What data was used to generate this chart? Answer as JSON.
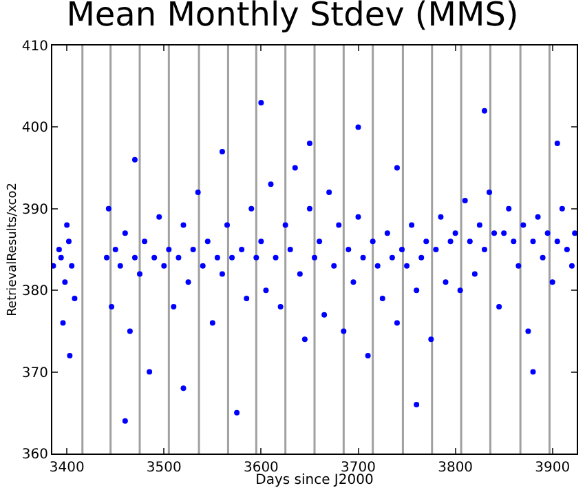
{
  "chart_data": {
    "type": "scatter",
    "title": "Mean Monthly Stdev (MMS)",
    "xlabel": "Days since J2000",
    "ylabel": "RetrievalResults/xco2",
    "xlim": [
      3385,
      3925
    ],
    "xticks": [
      3400,
      3500,
      3600,
      3700,
      3800,
      3900
    ],
    "ylim": [
      360,
      410
    ],
    "yticks": [
      360,
      370,
      380,
      390,
      400,
      410
    ],
    "marker": "circle",
    "series": [
      {
        "color": "#0000ff",
        "x": [
          3386,
          3392,
          3398,
          3402,
          3405,
          3408,
          3400,
          3396,
          3403,
          3394,
          3441,
          3443,
          3446,
          3450,
          3455,
          3460,
          3465,
          3470,
          3475,
          3480,
          3485,
          3490,
          3495,
          3500,
          3505,
          3510,
          3515,
          3520,
          3525,
          3530,
          3535,
          3540,
          3545,
          3550,
          3555,
          3560,
          3565,
          3570,
          3575,
          3580,
          3585,
          3590,
          3595,
          3600,
          3605,
          3610,
          3615,
          3620,
          3625,
          3630,
          3635,
          3640,
          3645,
          3650,
          3655,
          3660,
          3665,
          3670,
          3675,
          3680,
          3685,
          3690,
          3695,
          3700,
          3705,
          3710,
          3715,
          3720,
          3725,
          3730,
          3735,
          3740,
          3745,
          3750,
          3755,
          3760,
          3765,
          3770,
          3775,
          3780,
          3785,
          3790,
          3795,
          3800,
          3805,
          3810,
          3815,
          3820,
          3825,
          3830,
          3835,
          3840,
          3845,
          3850,
          3855,
          3860,
          3865,
          3870,
          3875,
          3880,
          3885,
          3890,
          3895,
          3900,
          3905,
          3910,
          3915,
          3920,
          3923,
          3460,
          3520,
          3600,
          3650,
          3700,
          3760,
          3830,
          3880,
          3470,
          3560,
          3740,
          3905
        ],
        "values": [
          383,
          385,
          381,
          386,
          383,
          379,
          388,
          376,
          372,
          384,
          384,
          390,
          378,
          385,
          383,
          387,
          375,
          384,
          382,
          386,
          370,
          384,
          389,
          383,
          385,
          378,
          384,
          388,
          381,
          385,
          392,
          383,
          386,
          376,
          384,
          382,
          388,
          384,
          365,
          385,
          379,
          390,
          384,
          386,
          380,
          393,
          384,
          378,
          388,
          385,
          395,
          382,
          374,
          390,
          384,
          386,
          377,
          392,
          383,
          388,
          375,
          385,
          381,
          389,
          384,
          372,
          386,
          383,
          379,
          387,
          384,
          376,
          385,
          383,
          388,
          380,
          384,
          386,
          374,
          385,
          389,
          381,
          386,
          387,
          380,
          391,
          386,
          382,
          388,
          385,
          392,
          387,
          378,
          387,
          390,
          386,
          383,
          388,
          375,
          386,
          389,
          384,
          387,
          381,
          386,
          390,
          385,
          383,
          387,
          364,
          368,
          403,
          398,
          400,
          366,
          402,
          370,
          396,
          397,
          395,
          398
        ]
      }
    ],
    "ref_lines": [
      {
        "axis": "x",
        "value": 3416,
        "color": "#a0a0a0"
      },
      {
        "axis": "x",
        "value": 3445,
        "color": "#a0a0a0"
      },
      {
        "axis": "x",
        "value": 3475,
        "color": "#a0a0a0"
      },
      {
        "axis": "x",
        "value": 3505,
        "color": "#a0a0a0"
      },
      {
        "axis": "x",
        "value": 3536,
        "color": "#a0a0a0"
      },
      {
        "axis": "x",
        "value": 3566,
        "color": "#a0a0a0"
      },
      {
        "axis": "x",
        "value": 3595,
        "color": "#a0a0a0"
      },
      {
        "axis": "x",
        "value": 3625,
        "color": "#a0a0a0"
      },
      {
        "axis": "x",
        "value": 3655,
        "color": "#a0a0a0"
      },
      {
        "axis": "x",
        "value": 3685,
        "color": "#a0a0a0"
      },
      {
        "axis": "x",
        "value": 3715,
        "color": "#a0a0a0"
      },
      {
        "axis": "x",
        "value": 3746,
        "color": "#a0a0a0"
      },
      {
        "axis": "x",
        "value": 3776,
        "color": "#a0a0a0"
      },
      {
        "axis": "x",
        "value": 3806,
        "color": "#a0a0a0"
      },
      {
        "axis": "x",
        "value": 3836,
        "color": "#a0a0a0"
      },
      {
        "axis": "x",
        "value": 3867,
        "color": "#a0a0a0"
      },
      {
        "axis": "x",
        "value": 3897,
        "color": "#a0a0a0"
      }
    ]
  }
}
